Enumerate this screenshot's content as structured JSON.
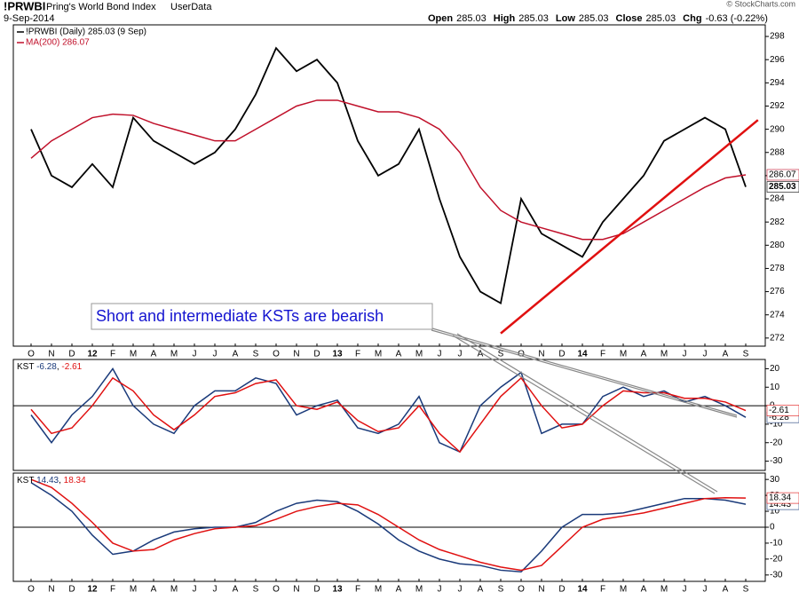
{
  "header": {
    "symbol": "!PRWBI",
    "name": "Pring's World Bond Index",
    "source": "UserData",
    "date": "9-Sep-2014",
    "credit": "© StockCharts.com",
    "quote": [
      {
        "label": "Open",
        "value": "285.03"
      },
      {
        "label": "High",
        "value": "285.03"
      },
      {
        "label": "Low",
        "value": "285.03"
      },
      {
        "label": "Close",
        "value": "285.03"
      },
      {
        "label": "Chg",
        "value": "-0.63 (-0.22%)"
      }
    ]
  },
  "chart_data": [
    {
      "type": "line",
      "annotation": "Short and intermediate KSTs are bearish",
      "categories": [
        "O",
        "N",
        "D",
        "12",
        "F",
        "M",
        "A",
        "M",
        "J",
        "J",
        "A",
        "S",
        "O",
        "N",
        "D",
        "13",
        "F",
        "M",
        "A",
        "M",
        "J",
        "J",
        "A",
        "S",
        "O",
        "N",
        "D",
        "14",
        "F",
        "M",
        "A",
        "M",
        "J",
        "J",
        "A",
        "S"
      ],
      "series": [
        {
          "name": "!PRWBI (Daily) 285.03 (9 Sep)",
          "color": "#000000",
          "values": [
            290,
            286,
            285,
            287,
            285,
            291,
            289,
            288,
            287,
            288,
            290,
            293,
            297,
            295,
            296,
            294,
            289,
            286,
            287,
            290,
            284,
            279,
            276,
            275,
            284,
            281,
            280,
            279,
            282,
            284,
            286,
            289,
            290,
            291,
            290,
            285.03
          ]
        },
        {
          "name": "MA(200) 286.07",
          "color": "#c0102a",
          "values": [
            287.5,
            289,
            290,
            291,
            291.3,
            291.2,
            290.5,
            290,
            289.5,
            289,
            289,
            290,
            291,
            292,
            292.5,
            292.5,
            292,
            291.5,
            291.5,
            291,
            290,
            288,
            285,
            283,
            282,
            281.5,
            281,
            280.5,
            280.5,
            281,
            282,
            283,
            284,
            285,
            285.8,
            286.07
          ]
        }
      ],
      "trendline": {
        "x": [
          23,
          35.6
        ],
        "y": [
          272.4,
          290.8
        ],
        "color": "#e01010"
      },
      "ylim": [
        271.3,
        299
      ],
      "yticks": [
        272,
        274,
        276,
        278,
        280,
        282,
        284,
        286,
        288,
        290,
        292,
        294,
        296,
        298
      ]
    },
    {
      "type": "line",
      "legend": {
        "label": "KST",
        "separator": ", "
      },
      "series": [
        {
          "color": "#1a3a7a",
          "values": [
            -5,
            -20,
            -5,
            5,
            20,
            0,
            -10,
            -15,
            0,
            8,
            8,
            15,
            12,
            -5,
            0,
            3,
            -12,
            -15,
            -10,
            5,
            -20,
            -25,
            0,
            10,
            18,
            -15,
            -10,
            -10,
            5,
            10,
            5,
            8,
            2,
            5,
            0,
            -6.28
          ]
        },
        {
          "color": "#e01010",
          "values": [
            -2,
            -15,
            -12,
            0,
            15,
            8,
            -5,
            -13,
            -5,
            5,
            7,
            12,
            14,
            0,
            -2,
            2,
            -8,
            -14,
            -12,
            0,
            -15,
            -25,
            -10,
            5,
            15,
            0,
            -12,
            -10,
            0,
            8,
            7,
            7,
            4,
            4,
            2,
            -2.61
          ]
        }
      ],
      "ylim": [
        -35,
        25
      ],
      "yticks": [
        -30,
        -20,
        -10,
        0,
        10,
        20
      ],
      "zero_line": true
    },
    {
      "type": "line",
      "legend": {
        "label": "KST",
        "separator": ", "
      },
      "categories": [
        "O",
        "N",
        "D",
        "12",
        "F",
        "M",
        "A",
        "M",
        "J",
        "J",
        "A",
        "S",
        "O",
        "N",
        "D",
        "13",
        "F",
        "M",
        "A",
        "M",
        "J",
        "J",
        "A",
        "S",
        "O",
        "N",
        "D",
        "14",
        "F",
        "M",
        "A",
        "M",
        "J",
        "J",
        "A",
        "S"
      ],
      "series": [
        {
          "color": "#1a3a7a",
          "values": [
            28,
            20,
            10,
            -5,
            -17,
            -15,
            -8,
            -3,
            -1,
            0,
            0,
            3,
            10,
            15,
            17,
            16,
            10,
            2,
            -8,
            -15,
            -20,
            -23,
            -24,
            -27,
            -28,
            -15,
            0,
            8,
            8,
            9,
            12,
            15,
            18,
            18,
            17,
            14.43
          ]
        },
        {
          "color": "#e01010",
          "values": [
            30,
            25,
            15,
            3,
            -10,
            -15,
            -14,
            -8,
            -4,
            -1,
            0,
            1,
            5,
            10,
            13,
            15,
            14,
            8,
            0,
            -8,
            -14,
            -18,
            -22,
            -25,
            -27,
            -24,
            -12,
            0,
            5,
            7,
            9,
            12,
            15,
            18,
            18.5,
            18.34
          ]
        }
      ],
      "ylim": [
        -34,
        34
      ],
      "yticks": [
        -30,
        -20,
        -10,
        0,
        10,
        20,
        30
      ],
      "zero_line": true
    }
  ]
}
